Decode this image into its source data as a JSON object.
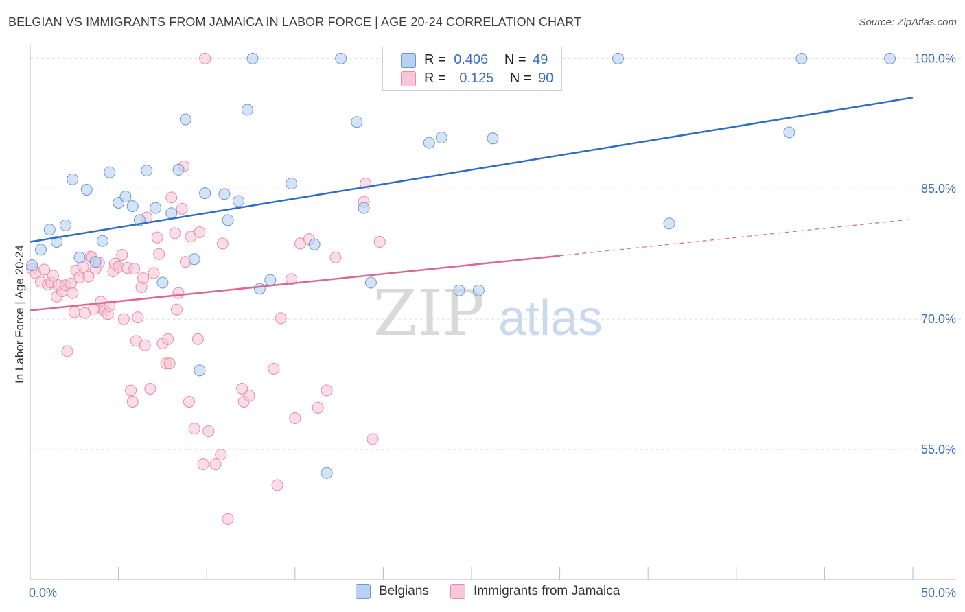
{
  "header": {
    "title": "BELGIAN VS IMMIGRANTS FROM JAMAICA IN LABOR FORCE | AGE 20-24 CORRELATION CHART",
    "source": "Source: ZipAtlas.com"
  },
  "legend": {
    "items": [
      {
        "r_label": "R =",
        "r_value": "0.406",
        "n_label": "N =",
        "n_value": "49"
      },
      {
        "r_label": "R =",
        "r_value": "0.125",
        "n_label": "N =",
        "n_value": "90"
      }
    ]
  },
  "bottom_legend": {
    "series1": "Belgians",
    "series2": "Immigrants from Jamaica"
  },
  "colors": {
    "blue_fill": "#b9d0f0",
    "blue_stroke": "#6a98d8",
    "blue_line": "#2a6ccb",
    "pink_fill": "#f9c6d5",
    "pink_stroke": "#e88aa8",
    "pink_line": "#e0668f",
    "axis_label": "#3b6fc4",
    "grid": "#dddddd"
  },
  "watermark": {
    "zip": "ZIP",
    "atlas": "atlas"
  },
  "chart_data": {
    "type": "scatter",
    "title": "BELGIAN VS IMMIGRANTS FROM JAMAICA IN LABOR FORCE | AGE 20-24 CORRELATION CHART",
    "xlabel": "",
    "ylabel": "In Labor Force | Age 20-24",
    "xlim": [
      0,
      50
    ],
    "ylim": [
      40,
      102
    ],
    "x_tick_labels": [
      "0.0%",
      "50.0%"
    ],
    "y_ticks": [
      55,
      70,
      85,
      100
    ],
    "y_tick_labels": [
      "55.0%",
      "70.0%",
      "85.0%",
      "100.0%"
    ],
    "grid": true,
    "legend_position": "top-center",
    "series": [
      {
        "name": "Belgians",
        "R": 0.406,
        "N": 49,
        "trend": {
          "x": [
            0,
            50
          ],
          "y": [
            78.9,
            95.5
          ],
          "dashed_from": null
        },
        "points": [
          [
            0.1,
            76.2
          ],
          [
            0.6,
            78.0
          ],
          [
            1.1,
            80.3
          ],
          [
            1.5,
            78.9
          ],
          [
            2.0,
            80.8
          ],
          [
            2.4,
            86.1
          ],
          [
            2.8,
            77.1
          ],
          [
            3.2,
            84.9
          ],
          [
            3.7,
            76.6
          ],
          [
            4.1,
            79.0
          ],
          [
            4.5,
            86.9
          ],
          [
            5.0,
            83.4
          ],
          [
            5.4,
            84.1
          ],
          [
            5.8,
            83.0
          ],
          [
            6.2,
            81.4
          ],
          [
            6.6,
            87.1
          ],
          [
            7.1,
            82.8
          ],
          [
            7.5,
            74.2
          ],
          [
            8.0,
            82.2
          ],
          [
            8.4,
            87.2
          ],
          [
            8.8,
            93.0
          ],
          [
            9.3,
            76.9
          ],
          [
            9.6,
            64.1
          ],
          [
            9.9,
            84.5
          ],
          [
            11.0,
            84.4
          ],
          [
            11.2,
            81.4
          ],
          [
            11.8,
            83.6
          ],
          [
            12.3,
            94.1
          ],
          [
            12.6,
            100.0
          ],
          [
            13.0,
            73.5
          ],
          [
            13.6,
            74.5
          ],
          [
            14.8,
            85.6
          ],
          [
            16.1,
            78.6
          ],
          [
            16.8,
            52.3
          ],
          [
            17.6,
            100.0
          ],
          [
            18.5,
            92.7
          ],
          [
            18.9,
            82.8
          ],
          [
            19.3,
            74.2
          ],
          [
            22.6,
            90.3
          ],
          [
            23.3,
            90.9
          ],
          [
            24.3,
            73.3
          ],
          [
            25.4,
            73.3
          ],
          [
            26.2,
            90.8
          ],
          [
            28.0,
            100.0
          ],
          [
            33.3,
            100.0
          ],
          [
            36.2,
            81.0
          ],
          [
            43.0,
            91.5
          ],
          [
            43.7,
            100.0
          ],
          [
            48.7,
            100.0
          ]
        ]
      },
      {
        "name": "Immigrants from Jamaica",
        "R": 0.125,
        "N": 90,
        "trend": {
          "x": [
            0,
            50
          ],
          "y": [
            71.0,
            81.5
          ],
          "dashed_from": 30.0
        },
        "points": [
          [
            0.1,
            75.8
          ],
          [
            0.3,
            75.3
          ],
          [
            0.6,
            74.3
          ],
          [
            0.8,
            75.7
          ],
          [
            1.0,
            74.0
          ],
          [
            1.2,
            74.2
          ],
          [
            1.3,
            75.0
          ],
          [
            1.5,
            72.6
          ],
          [
            1.6,
            73.9
          ],
          [
            1.8,
            73.2
          ],
          [
            2.0,
            73.9
          ],
          [
            2.1,
            66.3
          ],
          [
            2.3,
            74.1
          ],
          [
            2.5,
            70.8
          ],
          [
            2.6,
            75.6
          ],
          [
            2.8,
            74.8
          ],
          [
            3.0,
            76.0
          ],
          [
            3.1,
            70.7
          ],
          [
            3.3,
            74.9
          ],
          [
            3.4,
            77.2
          ],
          [
            3.5,
            77.1
          ],
          [
            3.7,
            75.8
          ],
          [
            3.9,
            76.5
          ],
          [
            4.0,
            72.0
          ],
          [
            4.1,
            71.2
          ],
          [
            4.2,
            71.0
          ],
          [
            4.4,
            70.6
          ],
          [
            4.5,
            71.5
          ],
          [
            4.7,
            75.5
          ],
          [
            4.8,
            76.4
          ],
          [
            5.0,
            76.0
          ],
          [
            5.2,
            77.4
          ],
          [
            5.3,
            70.0
          ],
          [
            5.5,
            75.9
          ],
          [
            5.7,
            61.8
          ],
          [
            5.8,
            60.5
          ],
          [
            6.0,
            67.5
          ],
          [
            6.1,
            70.2
          ],
          [
            6.3,
            73.7
          ],
          [
            6.4,
            74.7
          ],
          [
            6.5,
            67.0
          ],
          [
            6.6,
            81.7
          ],
          [
            6.8,
            62.0
          ],
          [
            7.0,
            75.3
          ],
          [
            7.2,
            79.4
          ],
          [
            7.3,
            77.5
          ],
          [
            7.5,
            67.2
          ],
          [
            7.7,
            64.9
          ],
          [
            7.8,
            67.7
          ],
          [
            7.9,
            64.9
          ],
          [
            8.0,
            84.0
          ],
          [
            8.2,
            79.9
          ],
          [
            8.3,
            71.1
          ],
          [
            8.6,
            82.7
          ],
          [
            8.7,
            87.6
          ],
          [
            8.8,
            76.6
          ],
          [
            9.0,
            60.5
          ],
          [
            9.1,
            79.5
          ],
          [
            9.3,
            57.4
          ],
          [
            9.5,
            67.7
          ],
          [
            9.6,
            80.0
          ],
          [
            9.8,
            53.3
          ],
          [
            10.1,
            57.1
          ],
          [
            10.5,
            53.3
          ],
          [
            10.8,
            54.4
          ],
          [
            10.9,
            78.7
          ],
          [
            11.2,
            47.0
          ],
          [
            12.1,
            60.5
          ],
          [
            12.4,
            61.2
          ],
          [
            13.8,
            64.3
          ],
          [
            14.0,
            50.9
          ],
          [
            14.2,
            70.1
          ],
          [
            14.8,
            74.6
          ],
          [
            15.0,
            58.6
          ],
          [
            15.3,
            78.7
          ],
          [
            15.8,
            79.2
          ],
          [
            16.3,
            59.8
          ],
          [
            16.8,
            61.8
          ],
          [
            17.3,
            77.1
          ],
          [
            18.9,
            83.5
          ],
          [
            19.0,
            85.6
          ],
          [
            19.4,
            56.2
          ],
          [
            19.8,
            78.9
          ],
          [
            26.0,
            100.0
          ],
          [
            9.9,
            100.0
          ],
          [
            12.0,
            62.0
          ],
          [
            2.4,
            73.0
          ],
          [
            5.9,
            75.8
          ],
          [
            3.6,
            71.2
          ],
          [
            8.4,
            73.0
          ]
        ]
      }
    ]
  }
}
